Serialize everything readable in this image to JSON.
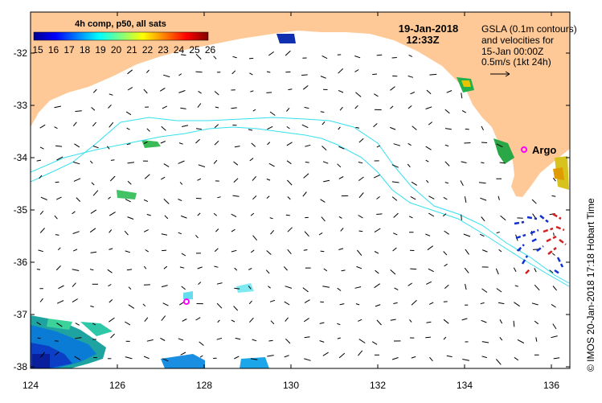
{
  "map": {
    "title_date": "19-Jan-2018",
    "title_time": "12:33Z",
    "gsla_note": [
      "GSLA (0.1m contours)",
      "and velocities for",
      "15-Jan 00:00Z",
      "0.5m/s (1kt 24h)"
    ],
    "place_label": "Argo",
    "sidebar": "© IMOS 20-Jan-2018 17:18 Hobart Time",
    "colorbar": {
      "title": "4h comp, p50, all sats",
      "labels": [
        "15",
        "16",
        "17",
        "18",
        "19",
        "20",
        "21",
        "22",
        "23",
        "24",
        "25",
        "26"
      ]
    },
    "lat_labels": [
      "-32",
      "-33",
      "-34",
      "-35",
      "-36",
      "-37",
      "-38"
    ],
    "lon_labels": [
      "124",
      "126",
      "128",
      "130",
      "132",
      "134",
      "136"
    ],
    "colors": {
      "land": "#fec996",
      "contour": "#33e0ee",
      "argo_marker": "#ff00ff"
    }
  }
}
